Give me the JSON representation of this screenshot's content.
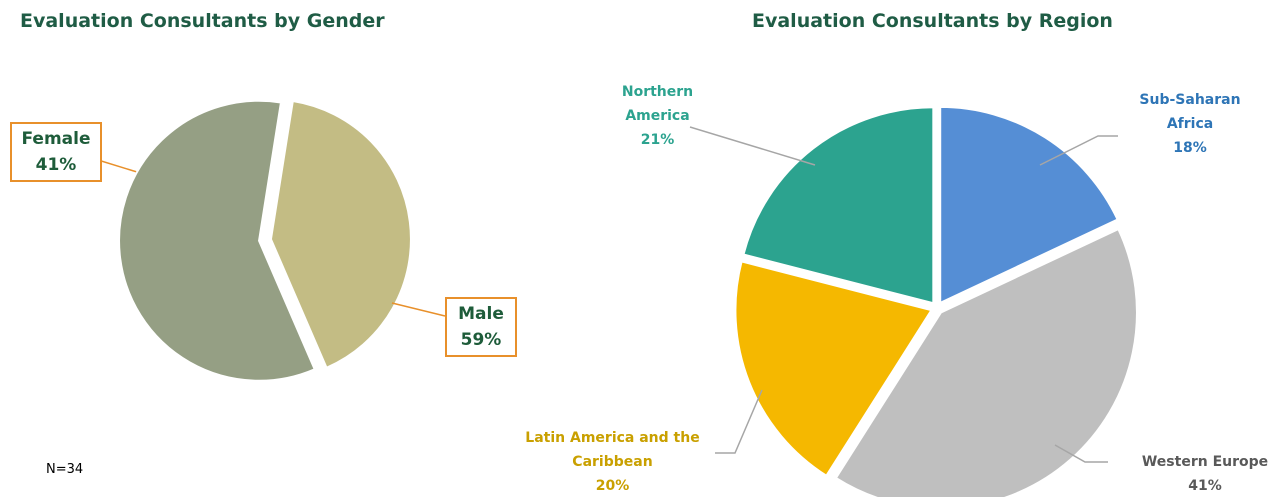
{
  "chart_data": [
    {
      "type": "pie",
      "title": "Evaluation Consultants by Gender",
      "categories": [
        "Female",
        "Male"
      ],
      "values": [
        41,
        59
      ],
      "value_labels": [
        "41%",
        "59%"
      ],
      "colors": [
        "#c3bc84",
        "#959f84"
      ],
      "label_colors": [
        "#1e5c3a",
        "#1e5c3a"
      ],
      "annotation": "N=34"
    },
    {
      "type": "pie",
      "title": "Evaluation Consultants by Region",
      "categories": [
        "Sub-Saharan Africa",
        "Western Europe",
        "Latin America and the Caribbean",
        "Northern America"
      ],
      "values": [
        18,
        41,
        20,
        21
      ],
      "value_labels": [
        "18%",
        "41%",
        "20%",
        "21%"
      ],
      "colors": [
        "#558ed5",
        "#bfbfbf",
        "#f5b800",
        "#2ca38f"
      ],
      "label_colors": [
        "#2e75b6",
        "#595959",
        "#c9a000",
        "#2ca38f"
      ]
    }
  ]
}
